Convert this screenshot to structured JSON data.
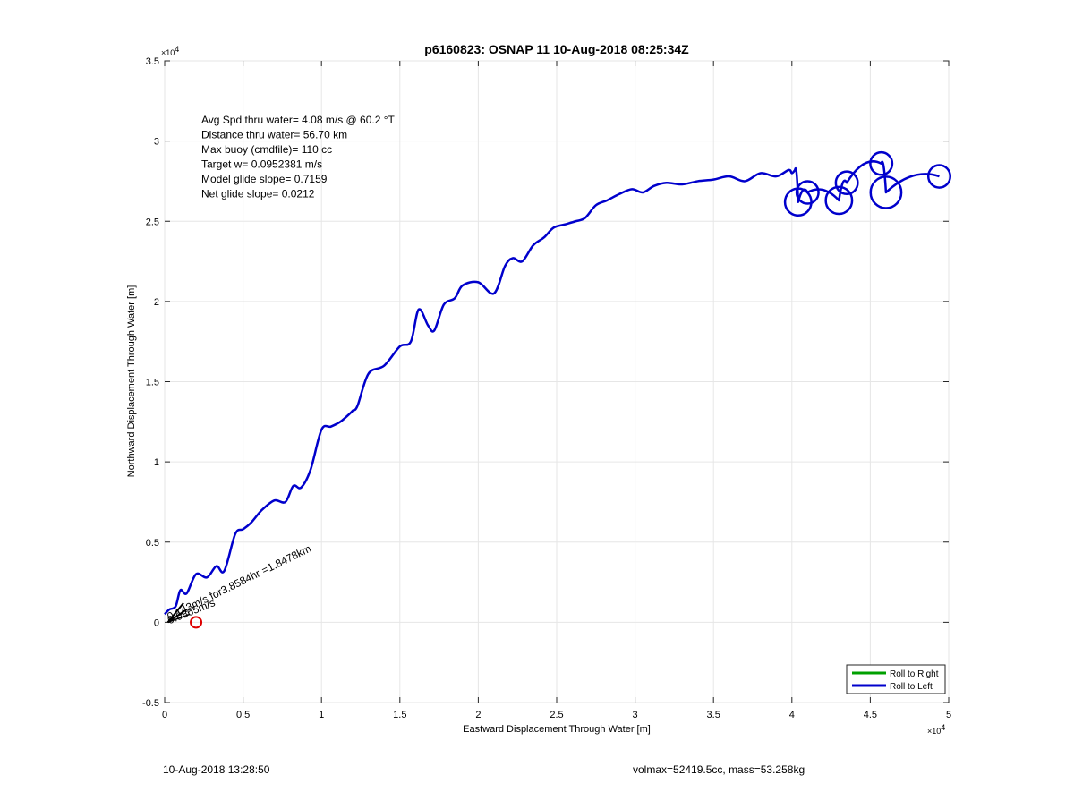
{
  "chart_data": {
    "type": "line",
    "title": "p6160823: OSNAP 11 10-Aug-2018 08:25:34Z",
    "xlabel": "Eastward Displacement Through Water [m]",
    "ylabel": "Northward Displacement Through Water [m]",
    "xlim": [
      0,
      5
    ],
    "ylim": [
      -0.5,
      3.5
    ],
    "x_exponent": "×10",
    "x_exponent_power": "4",
    "y_exponent": "×10",
    "y_exponent_power": "4",
    "x_ticks": [
      "0",
      "0.5",
      "1",
      "1.5",
      "2",
      "2.5",
      "3",
      "3.5",
      "4",
      "4.5",
      "5"
    ],
    "y_ticks": [
      "-0.5",
      "0",
      "0.5",
      "1",
      "1.5",
      "2",
      "2.5",
      "3",
      "3.5"
    ],
    "grid": true,
    "legend_position": "bottom-right",
    "legend": [
      {
        "label": "Roll to Right",
        "color": "#00a000"
      },
      {
        "label": "Roll to Left",
        "color": "#0000cc"
      }
    ],
    "annotations": [
      "Avg Spd thru water=  4.08 m/s @  60.2 °T",
      "Distance thru water= 56.70 km",
      "Max buoy (cmdfile)= 110 cc",
      "Target w= 0.0952381 m/s",
      "Model glide slope= 0.7159",
      "Net glide slope= 0.0212"
    ],
    "current_label": "0.143m/s for3.8584hr =1.8478km",
    "overlap_label": "0.0865m/s",
    "series": [
      {
        "name": "Roll to Left",
        "color": "#0000cc",
        "x": [
          0.0,
          0.03,
          0.07,
          0.1,
          0.14,
          0.2,
          0.27,
          0.33,
          0.38,
          0.45,
          0.5,
          0.55,
          0.62,
          0.7,
          0.77,
          0.82,
          0.87,
          0.93,
          1.0,
          1.06,
          1.12,
          1.18,
          1.2,
          1.23,
          1.3,
          1.4,
          1.5,
          1.57,
          1.62,
          1.68,
          1.72,
          1.78,
          1.85,
          1.9,
          2.0,
          2.1,
          2.17,
          2.22,
          2.28,
          2.35,
          2.42,
          2.48,
          2.55,
          2.62,
          2.68,
          2.75,
          2.82,
          2.9,
          2.98,
          3.05,
          3.12,
          3.2,
          3.3,
          3.4,
          3.5,
          3.6,
          3.7,
          3.8,
          3.9,
          3.98,
          4.0,
          4.02
        ],
        "y": [
          0.05,
          0.08,
          0.1,
          0.2,
          0.18,
          0.3,
          0.28,
          0.35,
          0.32,
          0.55,
          0.58,
          0.62,
          0.7,
          0.76,
          0.75,
          0.85,
          0.84,
          0.95,
          1.2,
          1.22,
          1.25,
          1.3,
          1.32,
          1.35,
          1.55,
          1.6,
          1.72,
          1.75,
          1.95,
          1.85,
          1.82,
          1.98,
          2.02,
          2.1,
          2.12,
          2.05,
          2.22,
          2.27,
          2.25,
          2.35,
          2.4,
          2.46,
          2.48,
          2.5,
          2.52,
          2.6,
          2.63,
          2.67,
          2.7,
          2.68,
          2.72,
          2.74,
          2.73,
          2.75,
          2.76,
          2.78,
          2.75,
          2.8,
          2.78,
          2.82,
          2.8,
          2.82
        ]
      }
    ],
    "loops": [
      {
        "x": 4.04,
        "y": 2.62,
        "r": 0.06
      },
      {
        "x": 4.1,
        "y": 2.68,
        "r": 0.05
      },
      {
        "x": 4.3,
        "y": 2.63,
        "r": 0.06
      },
      {
        "x": 4.35,
        "y": 2.74,
        "r": 0.05
      },
      {
        "x": 4.57,
        "y": 2.86,
        "r": 0.05
      },
      {
        "x": 4.6,
        "y": 2.68,
        "r": 0.07
      },
      {
        "x": 4.94,
        "y": 2.78,
        "r": 0.05
      }
    ],
    "start_marker": {
      "x": 0.2,
      "y": 0.0,
      "color": "#dd0000"
    }
  },
  "footer": {
    "timestamp": "10-Aug-2018 13:28:50",
    "summary": "volmax=52419.5cc, mass=53.258kg"
  }
}
